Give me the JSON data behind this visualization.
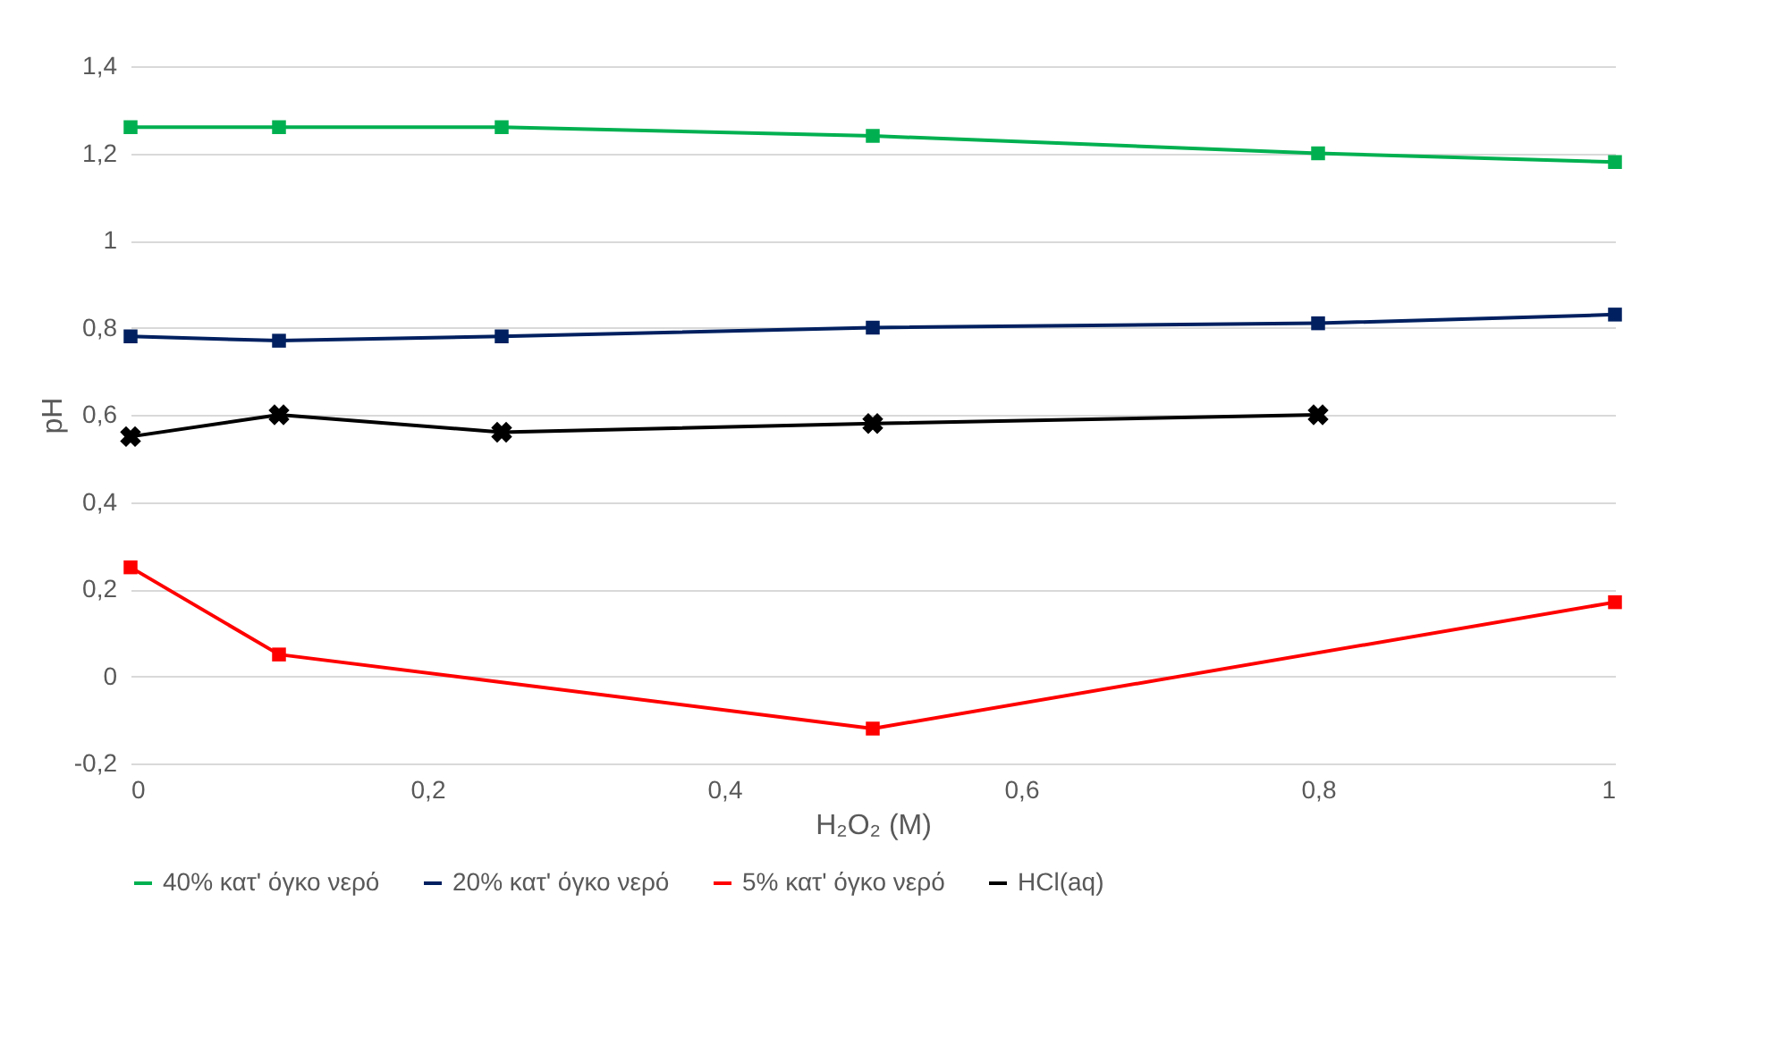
{
  "chart_data": {
    "type": "line",
    "xlabel": "H₂O₂ (M)",
    "ylabel": "pH",
    "xlim": [
      0,
      1
    ],
    "xticks": [
      0,
      {
        "value": 0.2,
        "label": "0,2"
      },
      {
        "value": 0.4,
        "label": "0,4"
      },
      {
        "value": 0.6,
        "label": "0,6"
      },
      {
        "value": 0.8,
        "label": "0,8"
      },
      1
    ],
    "ylim": [
      -0.2,
      1.4
    ],
    "yticks": [
      {
        "value": -0.2,
        "label": "-0,2"
      },
      0,
      {
        "value": 0.2,
        "label": "0,2"
      },
      {
        "value": 0.4,
        "label": "0,4"
      },
      {
        "value": 0.6,
        "label": "0,6"
      },
      {
        "value": 0.8,
        "label": "0,8"
      },
      1,
      {
        "value": 1.2,
        "label": "1,2"
      },
      {
        "value": 1.4,
        "label": "1,4"
      }
    ],
    "grid": "y",
    "legend": "bottom",
    "line_style": "solid",
    "series": [
      {
        "name": "40% κατ' όγκο νερό",
        "color": "#00b050",
        "marker": "square",
        "x": [
          0,
          0.1,
          0.25,
          0.5,
          0.8,
          1
        ],
        "values": [
          1.26,
          1.26,
          1.26,
          1.24,
          1.2,
          1.18
        ]
      },
      {
        "name": "20% κατ' όγκο νερό",
        "color": "#002060",
        "marker": "square",
        "x": [
          0,
          0.1,
          0.25,
          0.5,
          0.8,
          1
        ],
        "values": [
          0.78,
          0.77,
          0.78,
          0.8,
          0.81,
          0.83
        ]
      },
      {
        "name": "5% κατ' όγκο νερό",
        "color": "#ff0000",
        "marker": "square",
        "x": [
          0,
          0.1,
          0.5,
          1
        ],
        "values": [
          0.25,
          0.05,
          -0.12,
          0.17
        ]
      },
      {
        "name": "HCl(aq)",
        "color": "#000000",
        "marker": "cross",
        "x": [
          0,
          0.1,
          0.25,
          0.5,
          0.8
        ],
        "values": [
          0.55,
          0.6,
          0.56,
          0.58,
          0.6
        ]
      }
    ]
  }
}
